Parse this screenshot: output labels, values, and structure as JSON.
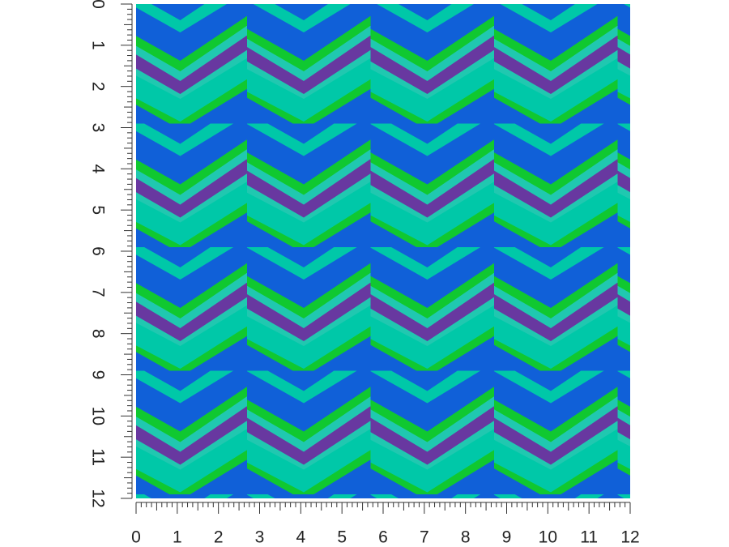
{
  "rulers": {
    "left": {
      "labels": [
        "0",
        "1",
        "2",
        "3",
        "4",
        "5",
        "6",
        "7",
        "8",
        "9",
        "10",
        "11",
        "12"
      ]
    },
    "bottom": {
      "labels": [
        "0",
        "1",
        "2",
        "3",
        "4",
        "5",
        "6",
        "7",
        "8",
        "9",
        "10",
        "11",
        "12"
      ]
    }
  }
}
